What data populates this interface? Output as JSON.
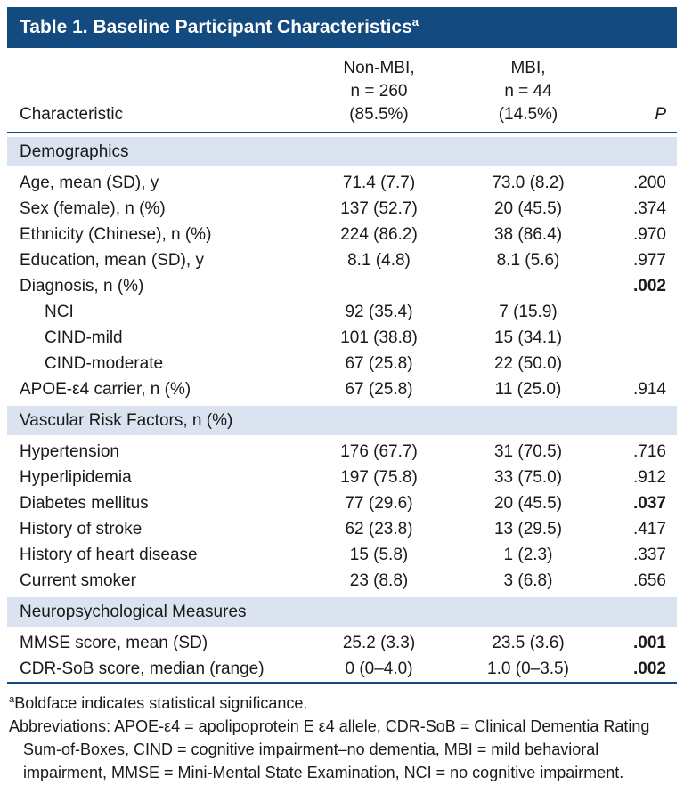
{
  "colors": {
    "navy": "#134b80",
    "band": "#dbe3f1"
  },
  "title": {
    "text": "Table 1. Baseline Participant Characteristics",
    "superscript": "a"
  },
  "header": {
    "characteristic": "Characteristic",
    "group1": [
      "Non-MBI,",
      "n = 260",
      "(85.5%)"
    ],
    "group2": [
      "MBI,",
      "n = 44",
      "(14.5%)"
    ],
    "p": "P"
  },
  "sections": [
    {
      "header": "Demographics",
      "rows": [
        {
          "label": "Age, mean (SD), y",
          "non_mbi": "71.4 (7.7)",
          "mbi": "73.0 (8.2)",
          "p": ".200",
          "significant": false,
          "indent": false
        },
        {
          "label": "Sex (female), n (%)",
          "non_mbi": "137 (52.7)",
          "mbi": "20 (45.5)",
          "p": ".374",
          "significant": false,
          "indent": false
        },
        {
          "label": "Ethnicity (Chinese), n (%)",
          "non_mbi": "224 (86.2)",
          "mbi": "38 (86.4)",
          "p": ".970",
          "significant": false,
          "indent": false
        },
        {
          "label": "Education, mean (SD), y",
          "non_mbi": "8.1 (4.8)",
          "mbi": "8.1 (5.6)",
          "p": ".977",
          "significant": false,
          "indent": false
        },
        {
          "label": "Diagnosis, n (%)",
          "non_mbi": "",
          "mbi": "",
          "p": ".002",
          "significant": true,
          "indent": false
        },
        {
          "label": "NCI",
          "non_mbi": "92 (35.4)",
          "mbi": "7 (15.9)",
          "p": "",
          "significant": false,
          "indent": true
        },
        {
          "label": "CIND-mild",
          "non_mbi": "101 (38.8)",
          "mbi": "15 (34.1)",
          "p": "",
          "significant": false,
          "indent": true
        },
        {
          "label": "CIND-moderate",
          "non_mbi": "67 (25.8)",
          "mbi": "22 (50.0)",
          "p": "",
          "significant": false,
          "indent": true
        },
        {
          "label": "APOE-ε4 carrier, n (%)",
          "non_mbi": "67 (25.8)",
          "mbi": "11 (25.0)",
          "p": ".914",
          "significant": false,
          "indent": false
        }
      ]
    },
    {
      "header": "Vascular Risk Factors, n (%)",
      "rows": [
        {
          "label": "Hypertension",
          "non_mbi": "176 (67.7)",
          "mbi": "31 (70.5)",
          "p": ".716",
          "significant": false,
          "indent": false
        },
        {
          "label": "Hyperlipidemia",
          "non_mbi": "197 (75.8)",
          "mbi": "33 (75.0)",
          "p": ".912",
          "significant": false,
          "indent": false
        },
        {
          "label": "Diabetes mellitus",
          "non_mbi": "77 (29.6)",
          "mbi": "20 (45.5)",
          "p": ".037",
          "significant": true,
          "indent": false
        },
        {
          "label": "History of stroke",
          "non_mbi": "62 (23.8)",
          "mbi": "13 (29.5)",
          "p": ".417",
          "significant": false,
          "indent": false
        },
        {
          "label": "History of heart disease",
          "non_mbi": "15 (5.8)",
          "mbi": "1 (2.3)",
          "p": ".337",
          "significant": false,
          "indent": false
        },
        {
          "label": "Current smoker",
          "non_mbi": "23 (8.8)",
          "mbi": "3 (6.8)",
          "p": ".656",
          "significant": false,
          "indent": false
        }
      ]
    },
    {
      "header": "Neuropsychological Measures",
      "rows": [
        {
          "label": "MMSE score, mean (SD)",
          "non_mbi": "25.2 (3.3)",
          "mbi": "23.5 (3.6)",
          "p": ".001",
          "significant": true,
          "indent": false
        },
        {
          "label": "CDR-SoB score, median (range)",
          "non_mbi": "0 (0–4.0)",
          "mbi": "1.0 (0–3.5)",
          "p": ".002",
          "significant": true,
          "indent": false
        }
      ]
    }
  ],
  "footnotes": {
    "significance_superscript": "a",
    "significance": "Boldface indicates statistical significance.",
    "abbreviations": "Abbreviations: APOE-ε4 = apolipoprotein E ε4 allele, CDR-SoB = Clinical Dementia Rating Sum-of-Boxes, CIND = cognitive impairment–no dementia, MBI = mild behavioral impairment, MMSE = Mini-Mental State Examination, NCI = no cognitive impairment."
  }
}
